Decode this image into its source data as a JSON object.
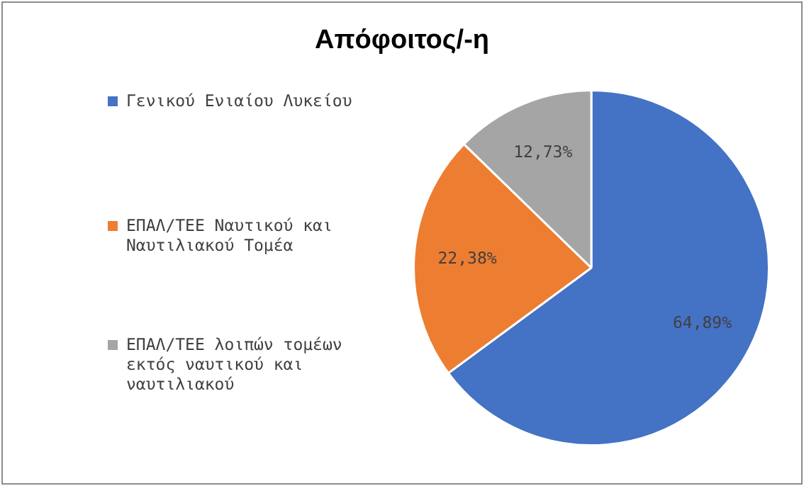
{
  "chart_data": {
    "type": "pie",
    "title": "Απόφοιτος/-η",
    "categories": [
      "Γενικού Ενιαίου Λυκείου",
      "ΕΠΑΛ/ΤΕΕ Ναυτικού και Ναυτιλιακού Τομέα",
      "ΕΠΑΛ/ΤΕΕ λοιπών τομέων εκτός ναυτικού και ναυτιλιακού"
    ],
    "values": [
      64.89,
      22.38,
      12.73
    ],
    "colors": [
      "#4472c4",
      "#ed7d31",
      "#a5a5a5"
    ],
    "value_labels": [
      "64,89%",
      "22,38%",
      "12,73%"
    ],
    "legend": "left"
  }
}
